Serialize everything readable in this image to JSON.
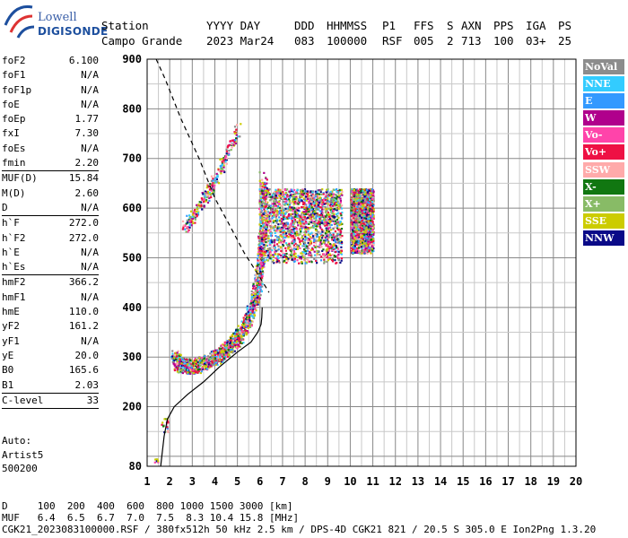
{
  "logo": {
    "line1": "Lowell",
    "line2": "DIGISONDE"
  },
  "header": {
    "cols": [
      {
        "h": "Station",
        "v": "Campo Grande"
      },
      {
        "h": "YYYY DAY",
        "v": "2023 Mar24"
      },
      {
        "h": "DDD",
        "v": "083"
      },
      {
        "h": "HHMMSS",
        "v": "100000"
      },
      {
        "h": "P1",
        "v": "RSF"
      },
      {
        "h": "FFS",
        "v": "005"
      },
      {
        "h": "S",
        "v": "2"
      },
      {
        "h": "AXN",
        "v": "713"
      },
      {
        "h": "PPS",
        "v": "100"
      },
      {
        "h": "IGA",
        "v": "03+"
      },
      {
        "h": "PS",
        "v": "25"
      }
    ]
  },
  "params": {
    "group1": [
      {
        "k": "foF2",
        "v": "6.100"
      },
      {
        "k": "foF1",
        "v": "N/A"
      },
      {
        "k": "foF1p",
        "v": "N/A"
      },
      {
        "k": "foE",
        "v": "N/A"
      },
      {
        "k": "foEp",
        "v": "1.77"
      },
      {
        "k": "fxI",
        "v": "7.30"
      },
      {
        "k": "foEs",
        "v": "N/A"
      },
      {
        "k": "fmin",
        "v": "2.20"
      }
    ],
    "group2": [
      {
        "k": "MUF(D)",
        "v": "15.84"
      },
      {
        "k": "M(D)",
        "v": "2.60"
      },
      {
        "k": "D",
        "v": "N/A"
      }
    ],
    "group3": [
      {
        "k": "h`F",
        "v": "272.0"
      },
      {
        "k": "h`F2",
        "v": "272.0"
      },
      {
        "k": "h`E",
        "v": "N/A"
      },
      {
        "k": "h`Es",
        "v": "N/A"
      }
    ],
    "group4": [
      {
        "k": "hmF2",
        "v": "366.2"
      },
      {
        "k": "hmF1",
        "v": "N/A"
      },
      {
        "k": "hmE",
        "v": "110.0"
      },
      {
        "k": "yF2",
        "v": "161.2"
      },
      {
        "k": "yF1",
        "v": "N/A"
      },
      {
        "k": "yE",
        "v": "20.0"
      },
      {
        "k": "B0",
        "v": "165.6"
      },
      {
        "k": "B1",
        "v": "2.03"
      }
    ],
    "group5": [
      {
        "k": "C-level",
        "v": "33"
      }
    ]
  },
  "auto": {
    "line1": "Auto:",
    "line2": "Artist5",
    "line3": "500200"
  },
  "footer": {
    "line1": "D     100  200  400  600  800 1000 1500 3000 [km]",
    "line2": "MUF   6.4  6.5  6.7  7.0  7.5  8.3 10.4 15.8 [MHz]",
    "line3": "CGK21_2023083100000.RSF / 380fx512h 50 kHz 2.5 km / DPS-4D CGK21 821 / 20.5 S 305.0 E Ion2Png 1.3.20"
  },
  "legend": [
    {
      "label": "NoVal",
      "color": "#8c8c8c"
    },
    {
      "label": "NNE",
      "color": "#33ccff"
    },
    {
      "label": "E",
      "color": "#3399ff"
    },
    {
      "label": "W",
      "color": "#b0008c"
    },
    {
      "label": "Vo-",
      "color": "#ff44aa"
    },
    {
      "label": "Vo+",
      "color": "#ee1144"
    },
    {
      "label": "SSW",
      "color": "#ffaaaa"
    },
    {
      "label": "X-",
      "color": "#117711"
    },
    {
      "label": "X+",
      "color": "#88bb66"
    },
    {
      "label": "SSE",
      "color": "#cccc00"
    },
    {
      "label": "NNW",
      "color": "#0a0a88"
    }
  ],
  "chart_data": {
    "type": "scatter",
    "xlabel": "",
    "ylabel": "",
    "xlim": [
      1,
      20
    ],
    "ylim": [
      80,
      900
    ],
    "xticks": [
      1,
      2,
      3,
      4,
      5,
      6,
      7,
      8,
      9,
      10,
      11,
      12,
      13,
      14,
      15,
      16,
      17,
      18,
      19,
      20
    ],
    "yticks": [
      80,
      200,
      300,
      400,
      500,
      600,
      700,
      800,
      900
    ],
    "grid": true,
    "legend_position": "right",
    "profile_curve": [
      [
        1.6,
        80
      ],
      [
        1.75,
        140
      ],
      [
        1.9,
        175
      ],
      [
        2.2,
        200
      ],
      [
        2.8,
        225
      ],
      [
        3.5,
        250
      ],
      [
        4.2,
        280
      ],
      [
        5.0,
        310
      ],
      [
        5.6,
        330
      ],
      [
        5.9,
        350
      ],
      [
        6.05,
        366
      ],
      [
        6.08,
        380
      ],
      [
        6.1,
        400
      ]
    ],
    "muf_curve": [
      [
        1.4,
        900
      ],
      [
        1.8,
        860
      ],
      [
        2.5,
        780
      ],
      [
        3.3,
        700
      ],
      [
        4.0,
        620
      ],
      [
        4.6,
        570
      ],
      [
        5.3,
        510
      ],
      [
        6.0,
        460
      ],
      [
        6.4,
        430
      ]
    ],
    "trace_f2": [
      [
        2.2,
        300
      ],
      [
        2.4,
        285
      ],
      [
        2.8,
        282
      ],
      [
        3.3,
        285
      ],
      [
        3.8,
        295
      ],
      [
        4.2,
        305
      ],
      [
        4.6,
        320
      ],
      [
        5.0,
        340
      ],
      [
        5.4,
        370
      ],
      [
        5.7,
        410
      ],
      [
        5.9,
        450
      ],
      [
        6.0,
        500
      ],
      [
        6.1,
        560
      ],
      [
        6.1,
        660
      ]
    ],
    "trace_f2_2": [
      [
        2.6,
        560
      ],
      [
        3.0,
        585
      ],
      [
        3.5,
        620
      ],
      [
        4.0,
        660
      ],
      [
        4.5,
        710
      ],
      [
        5.0,
        760
      ]
    ],
    "spread_blocks": [
      {
        "x": [
          6.0,
          9.6
        ],
        "y": [
          490,
          640
        ]
      },
      {
        "x": [
          10.0,
          11.0
        ],
        "y": [
          510,
          640
        ]
      }
    ]
  }
}
